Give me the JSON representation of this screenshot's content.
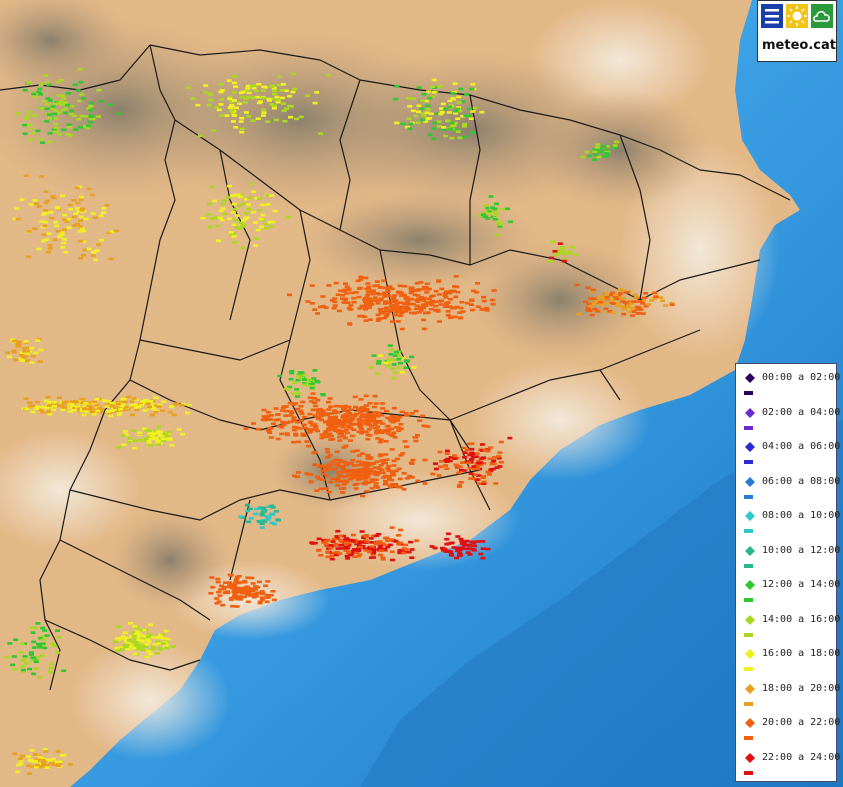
{
  "map": {
    "sea_color": "#1f8fd6",
    "land_color": "#e9c08f",
    "mountain_color": "#8c8878",
    "border_color": "#1a1a1a"
  },
  "logo": {
    "text": "meteo.cat",
    "icons": [
      "lines-icon",
      "sun-icon",
      "cloud-icon"
    ]
  },
  "legend": {
    "items": [
      {
        "label": "00:00 a 02:00",
        "color": "#2a0060"
      },
      {
        "label": "02:00 a 04:00",
        "color": "#6a2acb"
      },
      {
        "label": "04:00 a 06:00",
        "color": "#2a2ad0"
      },
      {
        "label": "06:00 a 08:00",
        "color": "#2a7ad8"
      },
      {
        "label": "08:00 a 10:00",
        "color": "#30c8c8"
      },
      {
        "label": "10:00 a 12:00",
        "color": "#28b890"
      },
      {
        "label": "12:00 a 14:00",
        "color": "#30c830"
      },
      {
        "label": "14:00 a 16:00",
        "color": "#a8d820"
      },
      {
        "label": "16:00 a 18:00",
        "color": "#f0f020"
      },
      {
        "label": "18:00 a 20:00",
        "color": "#e8a020"
      },
      {
        "label": "20:00 a 22:00",
        "color": "#f06010"
      },
      {
        "label": "22:00 a 24:00",
        "color": "#e01010"
      }
    ]
  }
}
